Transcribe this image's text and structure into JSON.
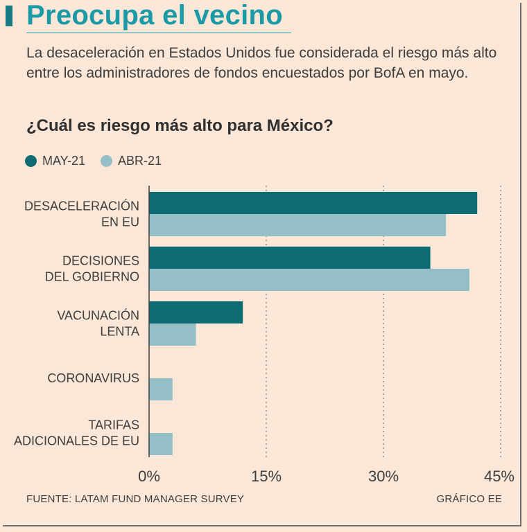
{
  "header": {
    "title": "Preocupa el vecino",
    "subtitle": "La desaceleración en Estados Unidos fue considerada el riesgo más alto entre los administradores de fondos encuestados por BofA en mayo.",
    "question": "¿Cuál es riesgo más alto para México?"
  },
  "colors": {
    "may": "#0d6b73",
    "abr": "#94bfc6",
    "accent": "#1a9aa6"
  },
  "chart_data": {
    "type": "bar",
    "orientation": "horizontal",
    "categories": [
      [
        "DESACELERACIÓN",
        "EN EU"
      ],
      [
        "DECISIONES",
        "DEL GOBIERNO"
      ],
      [
        "VACUNACIÓN",
        "LENTA"
      ],
      [
        "CORONAVIRUS"
      ],
      [
        "TARIFAS",
        "ADICIONALES DE EU"
      ]
    ],
    "series": [
      {
        "name": "MAY-21",
        "values": [
          42,
          36,
          12,
          null,
          null
        ]
      },
      {
        "name": "ABR-21",
        "values": [
          38,
          41,
          6,
          3,
          3
        ]
      }
    ],
    "xlim": [
      0,
      45
    ],
    "xticks": [
      0,
      15,
      30,
      45
    ],
    "xtick_labels": [
      "0%",
      "15%",
      "30%",
      "45%"
    ],
    "grid": "dotted vertical",
    "legend": "top-left"
  },
  "footer": {
    "source": "FUENTE: LATAM FUND MANAGER SURVEY",
    "credit": "GRÁFICO EE"
  }
}
